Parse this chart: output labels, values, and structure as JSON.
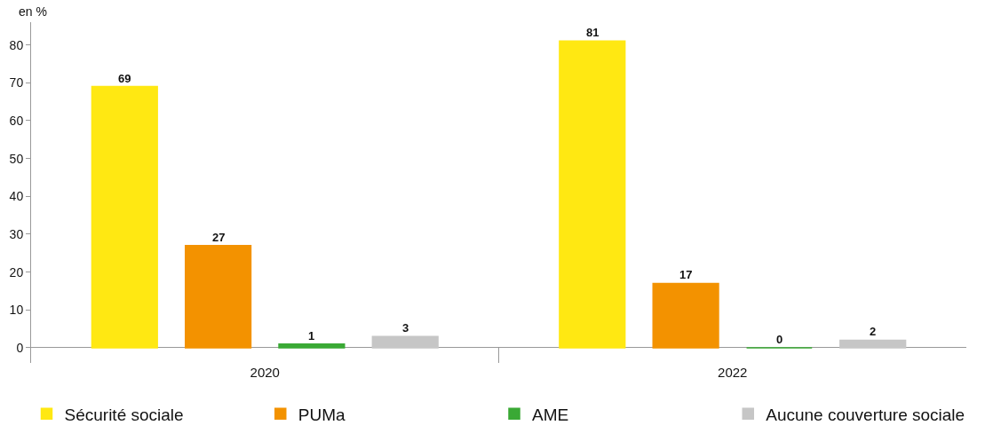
{
  "chart_data": {
    "type": "bar",
    "ylabel": "en %",
    "categories": [
      "2020",
      "2022"
    ],
    "series": [
      {
        "name": "Sécurité sociale",
        "color": "#ffe812",
        "values": [
          69,
          81
        ]
      },
      {
        "name": "PUMa",
        "color": "#f39200",
        "values": [
          27,
          17
        ]
      },
      {
        "name": "AME",
        "color": "#3aa935",
        "values": [
          1,
          0
        ]
      },
      {
        "name": "Aucune couverture sociale",
        "color": "#c6c6c6",
        "values": [
          3,
          2
        ]
      }
    ],
    "ylim": [
      -4,
      86
    ],
    "yticks": [
      0,
      10,
      20,
      30,
      40,
      50,
      60,
      70,
      80
    ],
    "grid": false,
    "data_labels": true,
    "legend": "bottom"
  }
}
